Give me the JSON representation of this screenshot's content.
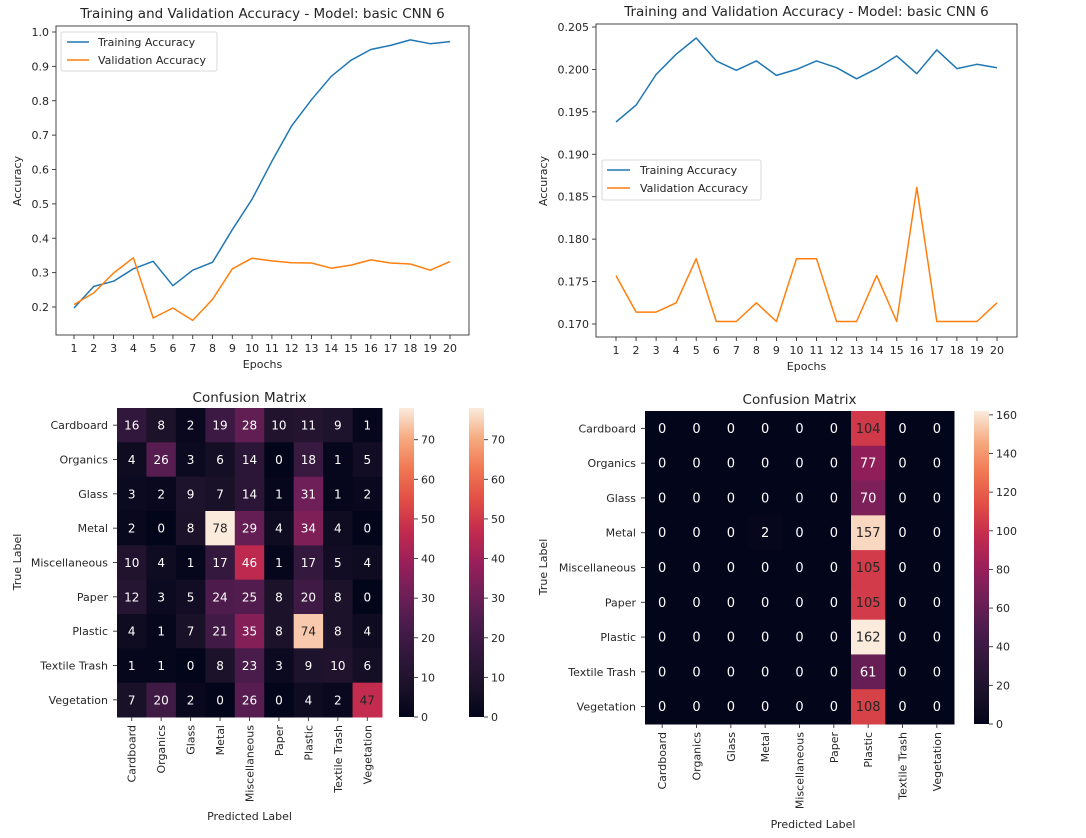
{
  "chart_data": [
    {
      "type": "line",
      "title": "Training and Validation Accuracy - Model: basic CNN 6",
      "xlabel": "Epochs",
      "ylabel": "Accuracy",
      "x": [
        1,
        2,
        3,
        4,
        5,
        6,
        7,
        8,
        9,
        10,
        11,
        12,
        13,
        14,
        15,
        16,
        17,
        18,
        19,
        20
      ],
      "xticks": [
        "1",
        "2",
        "3",
        "4",
        "5",
        "6",
        "7",
        "8",
        "9",
        "10",
        "11",
        "12",
        "13",
        "14",
        "15",
        "16",
        "17",
        "18",
        "19",
        "20"
      ],
      "yticks": [
        "0.2",
        "0.3",
        "0.4",
        "0.5",
        "0.6",
        "0.7",
        "0.8",
        "0.9",
        "1.0"
      ],
      "ytick_values": [
        0.2,
        0.3,
        0.4,
        0.5,
        0.6,
        0.7,
        0.8,
        0.9,
        1.0
      ],
      "ylim": [
        0.12,
        1.03
      ],
      "grid": false,
      "legend_position": "upper-left",
      "series": [
        {
          "name": "Training Accuracy",
          "color": "#1f77b4",
          "values": [
            0.197,
            0.26,
            0.275,
            0.311,
            0.333,
            0.262,
            0.307,
            0.33,
            0.425,
            0.514,
            0.624,
            0.727,
            0.803,
            0.871,
            0.918,
            0.949,
            0.961,
            0.977,
            0.966,
            0.972
          ]
        },
        {
          "name": "Validation Accuracy",
          "color": "#ff7f0e",
          "values": [
            0.207,
            0.241,
            0.299,
            0.343,
            0.168,
            0.197,
            0.161,
            0.222,
            0.311,
            0.342,
            0.334,
            0.329,
            0.328,
            0.313,
            0.322,
            0.337,
            0.328,
            0.325,
            0.307,
            0.332
          ]
        }
      ]
    },
    {
      "type": "line",
      "title": "Training and Validation Accuracy - Model: basic CNN 6",
      "xlabel": "Epochs",
      "ylabel": "Accuracy",
      "x": [
        1,
        2,
        3,
        4,
        5,
        6,
        7,
        8,
        9,
        10,
        11,
        12,
        13,
        14,
        15,
        16,
        17,
        18,
        19,
        20
      ],
      "xticks": [
        "1",
        "2",
        "3",
        "4",
        "5",
        "6",
        "7",
        "8",
        "9",
        "10",
        "11",
        "12",
        "13",
        "14",
        "15",
        "16",
        "17",
        "18",
        "19",
        "20"
      ],
      "yticks": [
        "0.170",
        "0.175",
        "0.180",
        "0.185",
        "0.190",
        "0.195",
        "0.200",
        "0.205"
      ],
      "ytick_values": [
        0.17,
        0.175,
        0.18,
        0.185,
        0.19,
        0.195,
        0.2,
        0.205
      ],
      "ylim": [
        0.1688,
        0.2055
      ],
      "grid": false,
      "legend_position": "center-left",
      "series": [
        {
          "name": "Training Accuracy",
          "color": "#1f77b4",
          "values": [
            0.1938,
            0.1958,
            0.1994,
            0.2018,
            0.2037,
            0.201,
            0.1999,
            0.201,
            0.1993,
            0.2,
            0.201,
            0.2002,
            0.1989,
            0.2001,
            0.2016,
            0.1995,
            0.2023,
            0.2001,
            0.2006,
            0.2002
          ]
        },
        {
          "name": "Validation Accuracy",
          "color": "#ff7f0e",
          "values": [
            0.1757,
            0.1714,
            0.1714,
            0.1725,
            0.1777,
            0.1703,
            0.1703,
            0.1725,
            0.1703,
            0.1777,
            0.1777,
            0.1703,
            0.1703,
            0.1757,
            0.1703,
            0.1861,
            0.1703,
            0.1703,
            0.1703,
            0.1725
          ]
        }
      ]
    },
    {
      "type": "heatmap",
      "title": "Confusion Matrix",
      "xlabel": "Predicted Label",
      "ylabel": "True Label",
      "labels": [
        "Cardboard",
        "Organics",
        "Glass",
        "Metal",
        "Miscellaneous",
        "Paper",
        "Plastic",
        "Textile Trash",
        "Vegetation"
      ],
      "matrix": [
        [
          16,
          8,
          2,
          19,
          28,
          10,
          11,
          9,
          1
        ],
        [
          4,
          26,
          3,
          6,
          14,
          0,
          18,
          1,
          5
        ],
        [
          3,
          2,
          9,
          7,
          14,
          1,
          31,
          1,
          2
        ],
        [
          2,
          0,
          8,
          78,
          29,
          4,
          34,
          4,
          0
        ],
        [
          10,
          4,
          1,
          17,
          46,
          1,
          17,
          5,
          4
        ],
        [
          12,
          3,
          5,
          24,
          25,
          8,
          20,
          8,
          0
        ],
        [
          4,
          1,
          7,
          21,
          35,
          8,
          74,
          8,
          4
        ],
        [
          1,
          1,
          0,
          8,
          23,
          3,
          9,
          10,
          6
        ],
        [
          7,
          20,
          2,
          0,
          26,
          0,
          4,
          2,
          47
        ]
      ],
      "colorbar_range": [
        0,
        78
      ],
      "colorbar_ticks": [
        0,
        10,
        20,
        30,
        40,
        50,
        60,
        70
      ],
      "colorbar_count": 2,
      "colormap": "rocket"
    },
    {
      "type": "heatmap",
      "title": "Confusion Matrix",
      "xlabel": "Predicted Label",
      "ylabel": "True Label",
      "labels": [
        "Cardboard",
        "Organics",
        "Glass",
        "Metal",
        "Miscellaneous",
        "Paper",
        "Plastic",
        "Textile Trash",
        "Vegetation"
      ],
      "matrix": [
        [
          0,
          0,
          0,
          0,
          0,
          0,
          104,
          0,
          0
        ],
        [
          0,
          0,
          0,
          0,
          0,
          0,
          77,
          0,
          0
        ],
        [
          0,
          0,
          0,
          0,
          0,
          0,
          70,
          0,
          0
        ],
        [
          0,
          0,
          0,
          2,
          0,
          0,
          157,
          0,
          0
        ],
        [
          0,
          0,
          0,
          0,
          0,
          0,
          105,
          0,
          0
        ],
        [
          0,
          0,
          0,
          0,
          0,
          0,
          105,
          0,
          0
        ],
        [
          0,
          0,
          0,
          0,
          0,
          0,
          162,
          0,
          0
        ],
        [
          0,
          0,
          0,
          0,
          0,
          0,
          61,
          0,
          0
        ],
        [
          0,
          0,
          0,
          0,
          0,
          0,
          108,
          0,
          0
        ]
      ],
      "colorbar_range": [
        0,
        162
      ],
      "colorbar_ticks": [
        0,
        20,
        40,
        60,
        80,
        100,
        120,
        140,
        160
      ],
      "colorbar_count": 1,
      "colormap": "rocket"
    }
  ]
}
